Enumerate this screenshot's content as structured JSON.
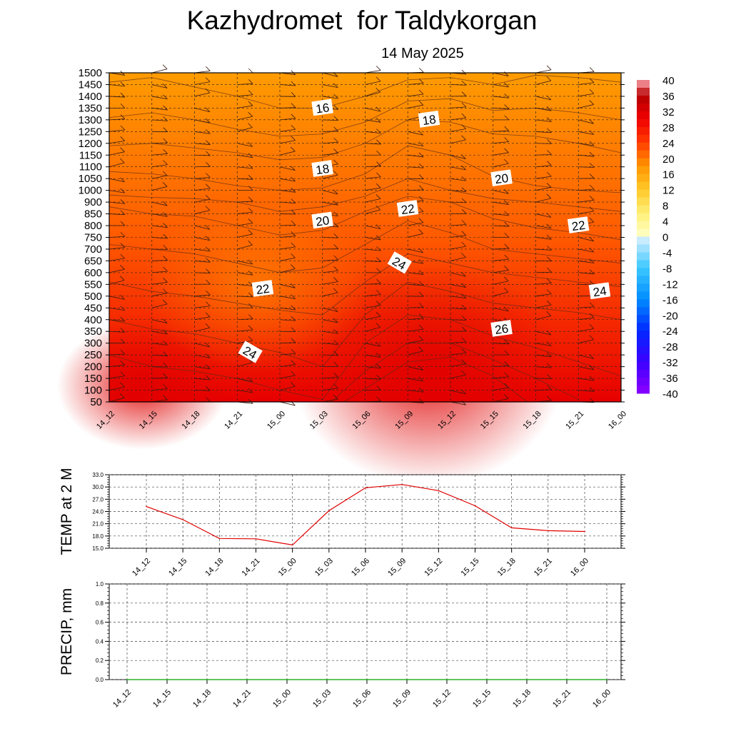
{
  "header": {
    "title": "Kazhydromet  for Taldykorgan",
    "date": "14 May 2025"
  },
  "chart_data": [
    {
      "type": "heatmap",
      "name": "temperature-cross-section",
      "x_ticks": [
        "14_12",
        "14_15",
        "14_18",
        "14_21",
        "15_00",
        "15_03",
        "15_06",
        "15_09",
        "15_12",
        "15_15",
        "15_18",
        "15_21",
        "16_00"
      ],
      "y_ticks": [
        50,
        100,
        150,
        200,
        250,
        300,
        350,
        400,
        450,
        500,
        550,
        600,
        650,
        700,
        750,
        800,
        850,
        900,
        1000,
        1050,
        1100,
        1150,
        1200,
        1250,
        1300,
        1350,
        1400,
        1450,
        1500
      ],
      "ylim": [
        50,
        1500
      ],
      "colorbar": {
        "labels": [
          40,
          36,
          32,
          28,
          24,
          20,
          16,
          12,
          8,
          4,
          0,
          -4,
          -8,
          -12,
          -16,
          -20,
          -24,
          -28,
          -32,
          -36,
          -40
        ],
        "range": [
          -40,
          40
        ]
      },
      "contour_labels": [
        {
          "value": 16,
          "x": 5.0,
          "y": 1350
        },
        {
          "value": 18,
          "x": 7.5,
          "y": 1300
        },
        {
          "value": 18,
          "x": 5.0,
          "y": 1090
        },
        {
          "value": 20,
          "x": 9.2,
          "y": 1050
        },
        {
          "value": 20,
          "x": 5.0,
          "y": 820
        },
        {
          "value": 22,
          "x": 7.0,
          "y": 870
        },
        {
          "value": 22,
          "x": 11.0,
          "y": 800
        },
        {
          "value": 22,
          "x": 3.6,
          "y": 530
        },
        {
          "value": 24,
          "x": 6.8,
          "y": 640
        },
        {
          "value": 24,
          "x": 11.5,
          "y": 520
        },
        {
          "value": 24,
          "x": 3.3,
          "y": 260
        },
        {
          "value": 26,
          "x": 9.2,
          "y": 360
        }
      ],
      "grid": true,
      "colors": {
        "low": "#e60000",
        "mid": "#ff5a00",
        "high": "#ff9a00"
      }
    },
    {
      "type": "line",
      "name": "temp-2m",
      "ylabel": "TEMP at 2 M",
      "categories": [
        "14_12",
        "14_15",
        "14_18",
        "14_21",
        "15_00",
        "15_03",
        "15_06",
        "15_09",
        "15_12",
        "15_15",
        "15_18",
        "15_21",
        "16_00"
      ],
      "values": [
        25.2,
        22.0,
        17.4,
        17.3,
        15.8,
        24.2,
        29.8,
        30.6,
        29.1,
        25.4,
        20.0,
        19.3,
        19.1
      ],
      "ylim": [
        15.0,
        33.0
      ],
      "y_ticks": [
        "15.0",
        "18.0",
        "21.0",
        "24.0",
        "27.0",
        "30.0",
        "33.0"
      ],
      "grid": true,
      "line_color": "#e00000"
    },
    {
      "type": "line",
      "name": "precip",
      "ylabel": "PRECIP, mm",
      "categories": [
        "14_12",
        "14_15",
        "14_18",
        "14_21",
        "15_00",
        "15_03",
        "15_06",
        "15_09",
        "15_12",
        "15_15",
        "15_18",
        "15_21",
        "16_00"
      ],
      "values": [
        0,
        0,
        0,
        0,
        0,
        0,
        0,
        0,
        0,
        0,
        0,
        0,
        0
      ],
      "ylim": [
        0.0,
        1.0
      ],
      "y_ticks": [
        "0.0",
        "0.2",
        "0.4",
        "0.6",
        "0.8",
        "1.0"
      ],
      "grid": true,
      "line_color": "#00a000"
    }
  ]
}
